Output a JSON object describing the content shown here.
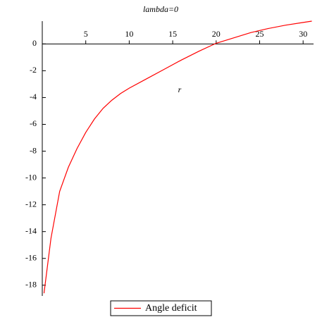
{
  "chart_data": {
    "type": "line",
    "title": "lambda=0",
    "x_label": "r",
    "x": [
      0.2,
      1,
      2,
      3,
      4,
      5,
      6,
      7,
      8,
      9,
      10,
      12,
      14,
      16,
      18,
      20,
      22,
      24,
      26,
      28,
      30,
      31
    ],
    "series": [
      {
        "name": "Angle deficit",
        "color": "#ff0000",
        "values": [
          -18.6,
          -14.5,
          -11,
          -9.2,
          -7.8,
          -6.6,
          -5.6,
          -4.8,
          -4.2,
          -3.7,
          -3.3,
          -2.6,
          -1.9,
          -1.2,
          -0.55,
          0.05,
          0.45,
          0.85,
          1.15,
          1.4,
          1.6,
          1.7
        ]
      }
    ],
    "xlim": [
      0,
      31.2
    ],
    "ylim": [
      -18.8,
      1.7
    ],
    "xticks": [
      5,
      10,
      15,
      20,
      25,
      30
    ],
    "yticks": [
      0,
      -2,
      -4,
      -6,
      -8,
      -10,
      -12,
      -14,
      -16,
      -18
    ],
    "legend": "bottom"
  }
}
